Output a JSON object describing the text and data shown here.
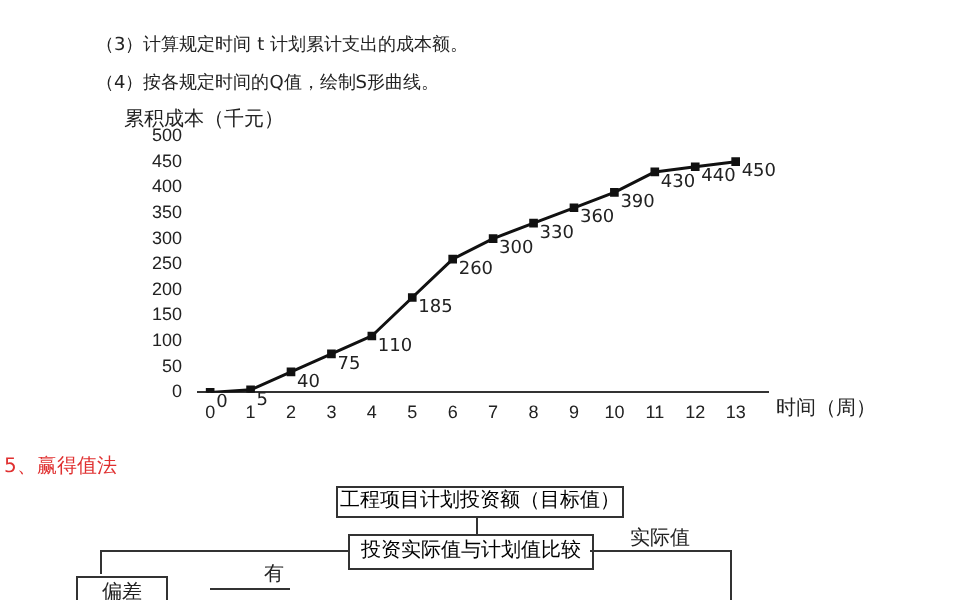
{
  "chart_data": {
    "type": "line",
    "xlabel": "时间（周）",
    "ylabel": "累积成本（千元）",
    "x": [
      0,
      1,
      2,
      3,
      4,
      5,
      6,
      7,
      8,
      9,
      10,
      11,
      12,
      13
    ],
    "series": [
      {
        "color": "#111111",
        "values": [
          0,
          5,
          40,
          75,
          110,
          185,
          260,
          300,
          330,
          360,
          390,
          430,
          440,
          450
        ]
      }
    ],
    "xlim": [
      -0.3,
      13.8
    ],
    "xticks": [
      0,
      1,
      2,
      3,
      4,
      5,
      6,
      7,
      8,
      9,
      10,
      11,
      12,
      13
    ],
    "ylim": [
      0,
      500
    ],
    "yticks": [
      0,
      50,
      100,
      150,
      200,
      250,
      300,
      350,
      400,
      450,
      500
    ],
    "grid": false,
    "legend": false,
    "marker": "square",
    "line_style": "solid",
    "data_labels": true,
    "annotations": [
      "（3）计算规定时间 t 计划累计支出的成本额。",
      "（4）按各规定时间的Q值，绘制S形曲线。",
      "5、赢得值法",
      "工程项目计划投资额（目标值）",
      "投资实际值与计划值比较",
      "实际值",
      "偏差",
      "有"
    ]
  }
}
